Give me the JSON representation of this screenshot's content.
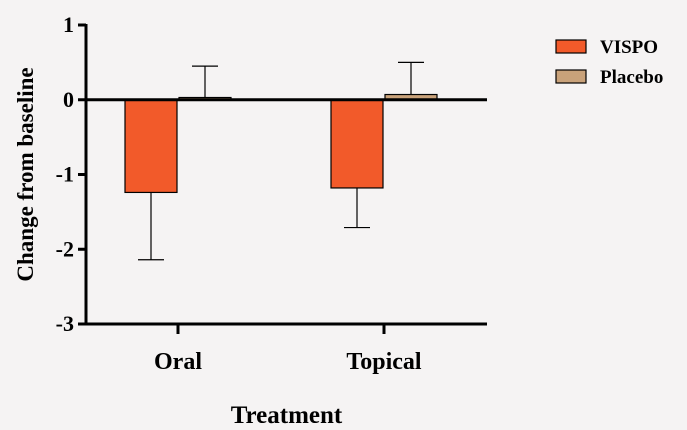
{
  "chart_data": {
    "type": "bar",
    "title": "",
    "xlabel": "Treatment",
    "ylabel": "Change from baseline",
    "categories": [
      "Oral",
      "Topical"
    ],
    "ylim": [
      -3,
      1
    ],
    "yticks": [
      1,
      0,
      -1,
      -2,
      -3
    ],
    "grid": false,
    "legend_position": "right",
    "series": [
      {
        "name": "VISPO",
        "color": "#f25a2a",
        "values": [
          -1.24,
          -1.18
        ],
        "error": [
          0.9,
          0.53
        ],
        "error_direction": "down"
      },
      {
        "name": "Placebo",
        "color": "#c9a27a",
        "values": [
          0.03,
          0.07
        ],
        "error": [
          0.42,
          0.43
        ],
        "error_direction": "up"
      }
    ]
  }
}
